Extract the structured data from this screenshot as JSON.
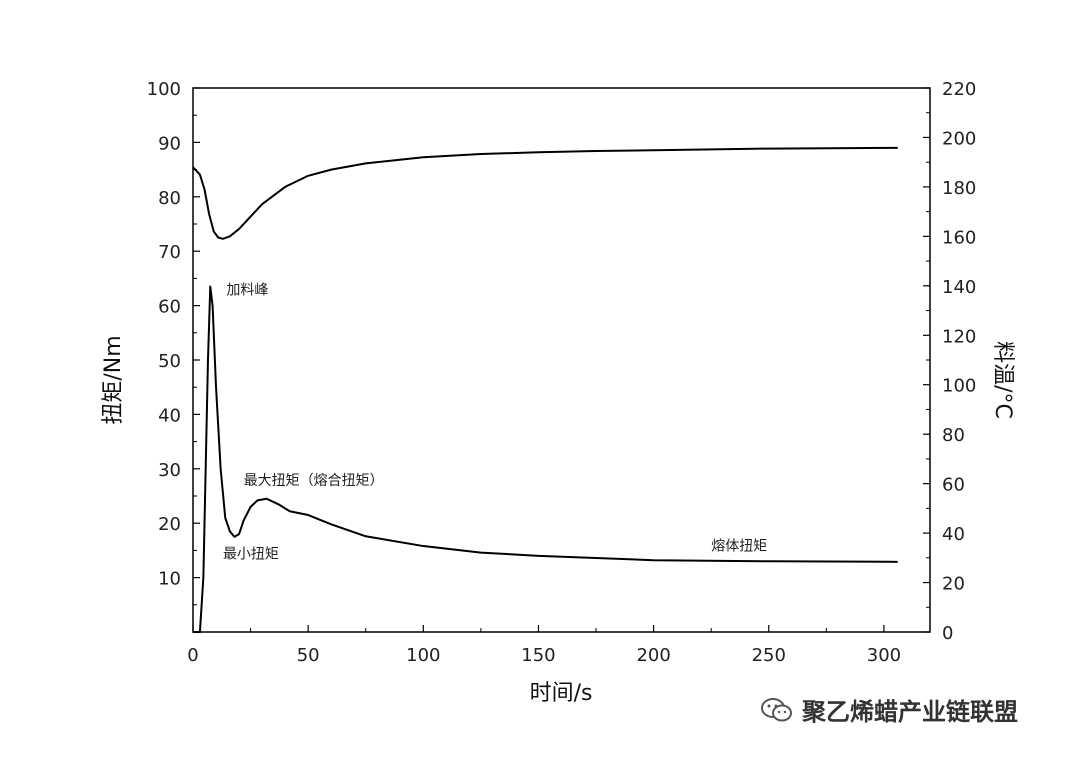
{
  "chart_data": {
    "type": "line",
    "xlabel": "时间/s",
    "ylabel_left": "扭矩/Nm",
    "ylabel_right": "料温/°C",
    "xlim": [
      0,
      320
    ],
    "ylim_left": [
      0,
      100
    ],
    "ylim_right": [
      0,
      220
    ],
    "x_ticks": [
      "0",
      "50",
      "100",
      "150",
      "200",
      "250",
      "300"
    ],
    "y_left_ticks": [
      "10",
      "20",
      "30",
      "40",
      "50",
      "60",
      "70",
      "80",
      "90",
      "100"
    ],
    "y_right_ticks": [
      "0",
      "20",
      "40",
      "60",
      "80",
      "100",
      "120",
      "140",
      "160",
      "180",
      "200",
      "220"
    ],
    "grid": false,
    "series": [
      {
        "axis": "right",
        "x": [
          0,
          3,
          5,
          7,
          9,
          11,
          13,
          16,
          20,
          25,
          30,
          40,
          50,
          60,
          75,
          100,
          125,
          150,
          175,
          200,
          250,
          306
        ],
        "y": [
          188,
          185,
          179,
          169,
          162,
          159.5,
          159,
          160,
          163,
          168,
          173,
          180,
          184.5,
          187,
          189.5,
          192,
          193.3,
          194,
          194.5,
          194.8,
          195.5,
          195.8
        ]
      },
      {
        "axis": "left",
        "x": [
          0,
          3,
          4.5,
          5.5,
          6.5,
          7.5,
          8.5,
          10,
          12,
          14,
          16,
          18,
          20,
          22,
          25,
          28,
          32,
          37,
          42,
          50,
          60,
          75,
          100,
          125,
          150,
          175,
          200,
          250,
          306
        ],
        "y": [
          0,
          0,
          10,
          30,
          50,
          63.5,
          60,
          45,
          30,
          21,
          18.5,
          17.5,
          18,
          20.5,
          23,
          24.2,
          24.5,
          23.5,
          22.2,
          21.5,
          19.8,
          17.6,
          15.8,
          14.6,
          14.0,
          13.6,
          13.2,
          13.0,
          12.9
        ]
      }
    ],
    "annotations": [
      {
        "text": "加料峰",
        "x": 14.5,
        "y": 62
      },
      {
        "text": "最大扭矩（熔合扭矩）",
        "x": 22,
        "y": 27
      },
      {
        "text": "最小扭矩",
        "x": 13,
        "y": 13.5
      },
      {
        "text": "熔体扭矩",
        "x": 225,
        "y": 15
      }
    ]
  },
  "watermark": {
    "text": "聚乙烯蜡产业链联盟",
    "icon": "wechat-icon"
  }
}
